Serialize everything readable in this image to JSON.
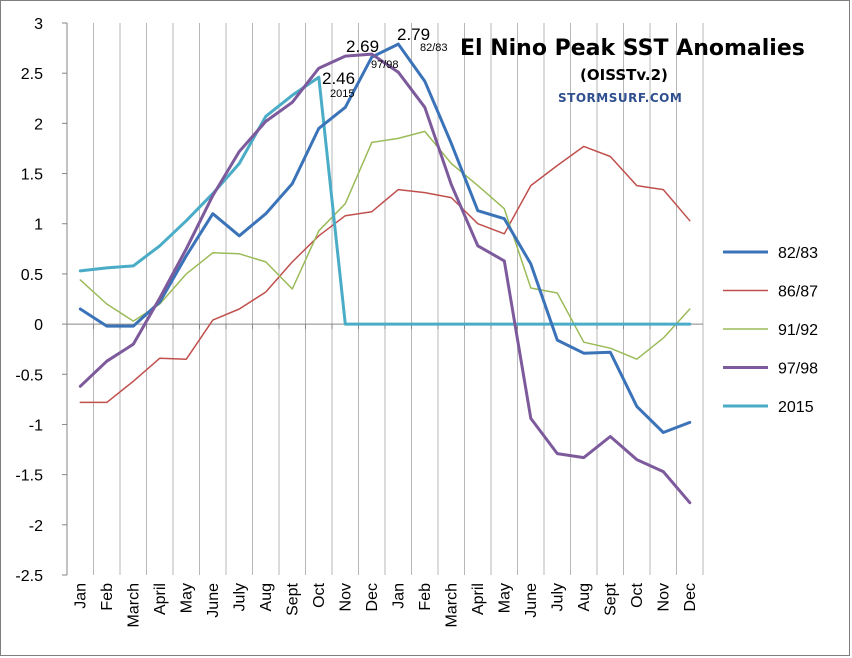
{
  "chart_data": {
    "type": "line",
    "title": "El Nino Peak SST Anomalies",
    "subtitle": "(OISSTv.2)",
    "brand": "STORMSURF.COM",
    "categories": [
      "Jan",
      "Feb",
      "March",
      "April",
      "May",
      "June",
      "July",
      "Aug",
      "Sept",
      "Oct",
      "Nov",
      "Dec",
      "Jan",
      "Feb",
      "March",
      "April",
      "May",
      "June",
      "July",
      "Aug",
      "Sept",
      "Oct",
      "Nov",
      "Dec"
    ],
    "ylim": [
      -2.5,
      3
    ],
    "yticks": [
      "3",
      "2.5",
      "2",
      "1.5",
      "1",
      "0.5",
      "0",
      "-0.5",
      "-1",
      "-1.5",
      "-2",
      "-2.5"
    ],
    "legend_position": "right",
    "series": [
      {
        "name": "82/83",
        "color": "#3b73b9",
        "width": 3,
        "values": [
          0.15,
          -0.02,
          -0.02,
          0.22,
          0.68,
          1.1,
          0.88,
          1.1,
          1.4,
          1.95,
          2.16,
          2.66,
          2.79,
          2.42,
          1.8,
          1.13,
          1.05,
          0.6,
          -0.16,
          -0.29,
          -0.28,
          -0.82,
          -1.08,
          -0.98
        ]
      },
      {
        "name": "86/87",
        "color": "#c0504d",
        "width": 1.5,
        "values": [
          -0.78,
          -0.78,
          -0.57,
          -0.34,
          -0.35,
          0.04,
          0.15,
          0.32,
          0.62,
          0.88,
          1.08,
          1.12,
          1.34,
          1.31,
          1.26,
          1.0,
          0.9,
          1.38,
          1.58,
          1.77,
          1.67,
          1.38,
          1.34,
          1.03
        ]
      },
      {
        "name": "91/92",
        "color": "#9bbb59",
        "width": 1.5,
        "values": [
          0.44,
          0.2,
          0.03,
          0.2,
          0.5,
          0.71,
          0.7,
          0.62,
          0.35,
          0.93,
          1.2,
          1.81,
          1.85,
          1.92,
          1.6,
          1.38,
          1.15,
          0.36,
          0.31,
          -0.18,
          -0.24,
          -0.35,
          -0.14,
          0.15
        ]
      },
      {
        "name": "97/98",
        "color": "#7d5a9c",
        "width": 3,
        "values": [
          -0.62,
          -0.37,
          -0.2,
          0.26,
          0.75,
          1.28,
          1.72,
          2.02,
          2.21,
          2.55,
          2.67,
          2.69,
          2.51,
          2.16,
          1.39,
          0.78,
          0.63,
          -0.94,
          -1.29,
          -1.33,
          -1.12,
          -1.35,
          -1.47,
          -1.78
        ]
      },
      {
        "name": "2015",
        "color": "#4aacc6",
        "width": 3,
        "values": [
          0.53,
          0.56,
          0.58,
          0.78,
          1.03,
          1.3,
          1.6,
          2.07,
          2.28,
          2.46,
          0,
          0,
          0,
          0,
          0,
          0,
          0,
          0,
          0,
          0,
          0,
          0,
          0,
          0
        ]
      }
    ],
    "annotations": [
      {
        "big": "2.69",
        "small": "97/98"
      },
      {
        "big": "2.79",
        "small": "82/83"
      },
      {
        "big": "2.46",
        "small": "2015"
      }
    ]
  }
}
